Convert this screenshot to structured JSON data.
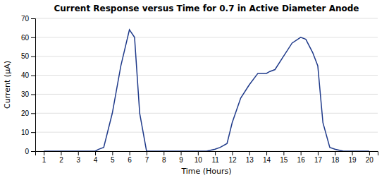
{
  "chart_data": {
    "type": "line",
    "title": "Current Response versus Time for 0.7 in Active Diameter Anode",
    "xlabel": "Time (Hours)",
    "ylabel": "Current (μA)",
    "x": [
      1,
      4,
      4.2,
      4.5,
      5.0,
      5.5,
      6.0,
      6.3,
      6.6,
      7.0,
      8,
      9,
      10,
      10.5,
      11.0,
      11.3,
      11.7,
      12.0,
      12.5,
      13.0,
      13.5,
      14.0,
      14.2,
      14.5,
      15.0,
      15.5,
      16.0,
      16.3,
      16.7,
      17.0,
      17.3,
      17.7,
      18.0,
      18.5,
      19.0,
      20
    ],
    "values": [
      0,
      0,
      1,
      2,
      20,
      45,
      64,
      60,
      20,
      0,
      0,
      0,
      0,
      0,
      1,
      2,
      4,
      15,
      28,
      35,
      41,
      41,
      42,
      43,
      50,
      57,
      60,
      59,
      52,
      45,
      15,
      2,
      1,
      0,
      0,
      0
    ],
    "color": "#1F3A8A",
    "xlim": [
      0.5,
      20.5
    ],
    "ylim": [
      0,
      70
    ],
    "xticks": [
      1,
      2,
      3,
      4,
      5,
      6,
      7,
      8,
      9,
      10,
      11,
      12,
      13,
      14,
      15,
      16,
      17,
      18,
      19,
      20
    ],
    "yticks": [
      0,
      10,
      20,
      30,
      40,
      50,
      60,
      70
    ],
    "grid": true
  }
}
